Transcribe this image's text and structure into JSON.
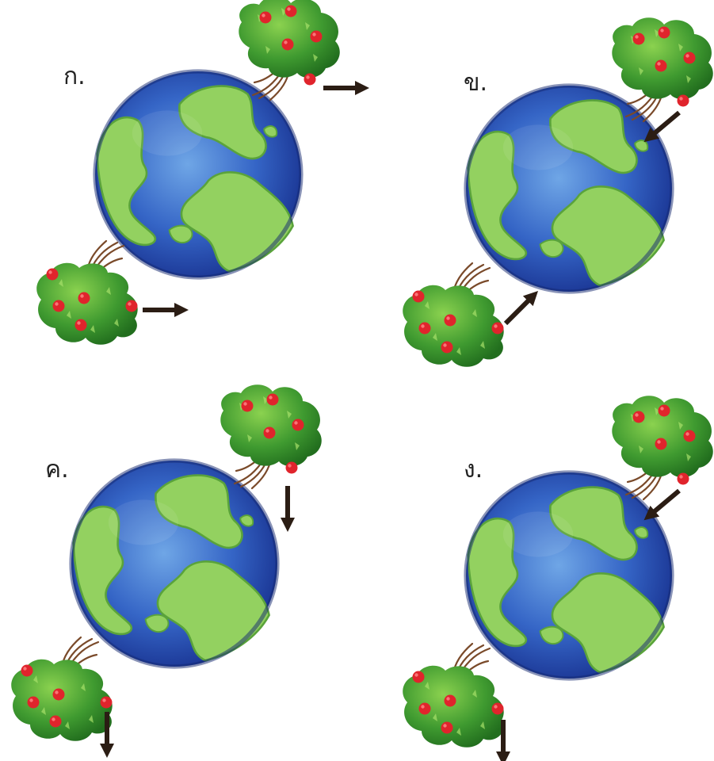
{
  "options": [
    {
      "label": "ก.",
      "arrows": {
        "top": "right",
        "bottom": "right"
      }
    },
    {
      "label": "ข.",
      "arrows": {
        "top": "toward-earth",
        "bottom": "toward-earth"
      }
    },
    {
      "label": "ค.",
      "arrows": {
        "top": "down",
        "bottom": "down"
      }
    },
    {
      "label": "ง.",
      "arrows": {
        "top": "toward-earth",
        "bottom": "down"
      }
    }
  ],
  "colors": {
    "ocean_dark": "#1a3a9e",
    "ocean_light": "#4f8ad8",
    "land": "#8fce5c",
    "land_edge": "#4f9a34",
    "foliage": "#3e9a2f",
    "foliage_light": "#7cc944",
    "apple": "#e0242c",
    "branch": "#7a4a2a",
    "arrow": "#2b1d14"
  },
  "icons": [
    "earth-globe",
    "apple-tree",
    "apple",
    "arrow"
  ]
}
